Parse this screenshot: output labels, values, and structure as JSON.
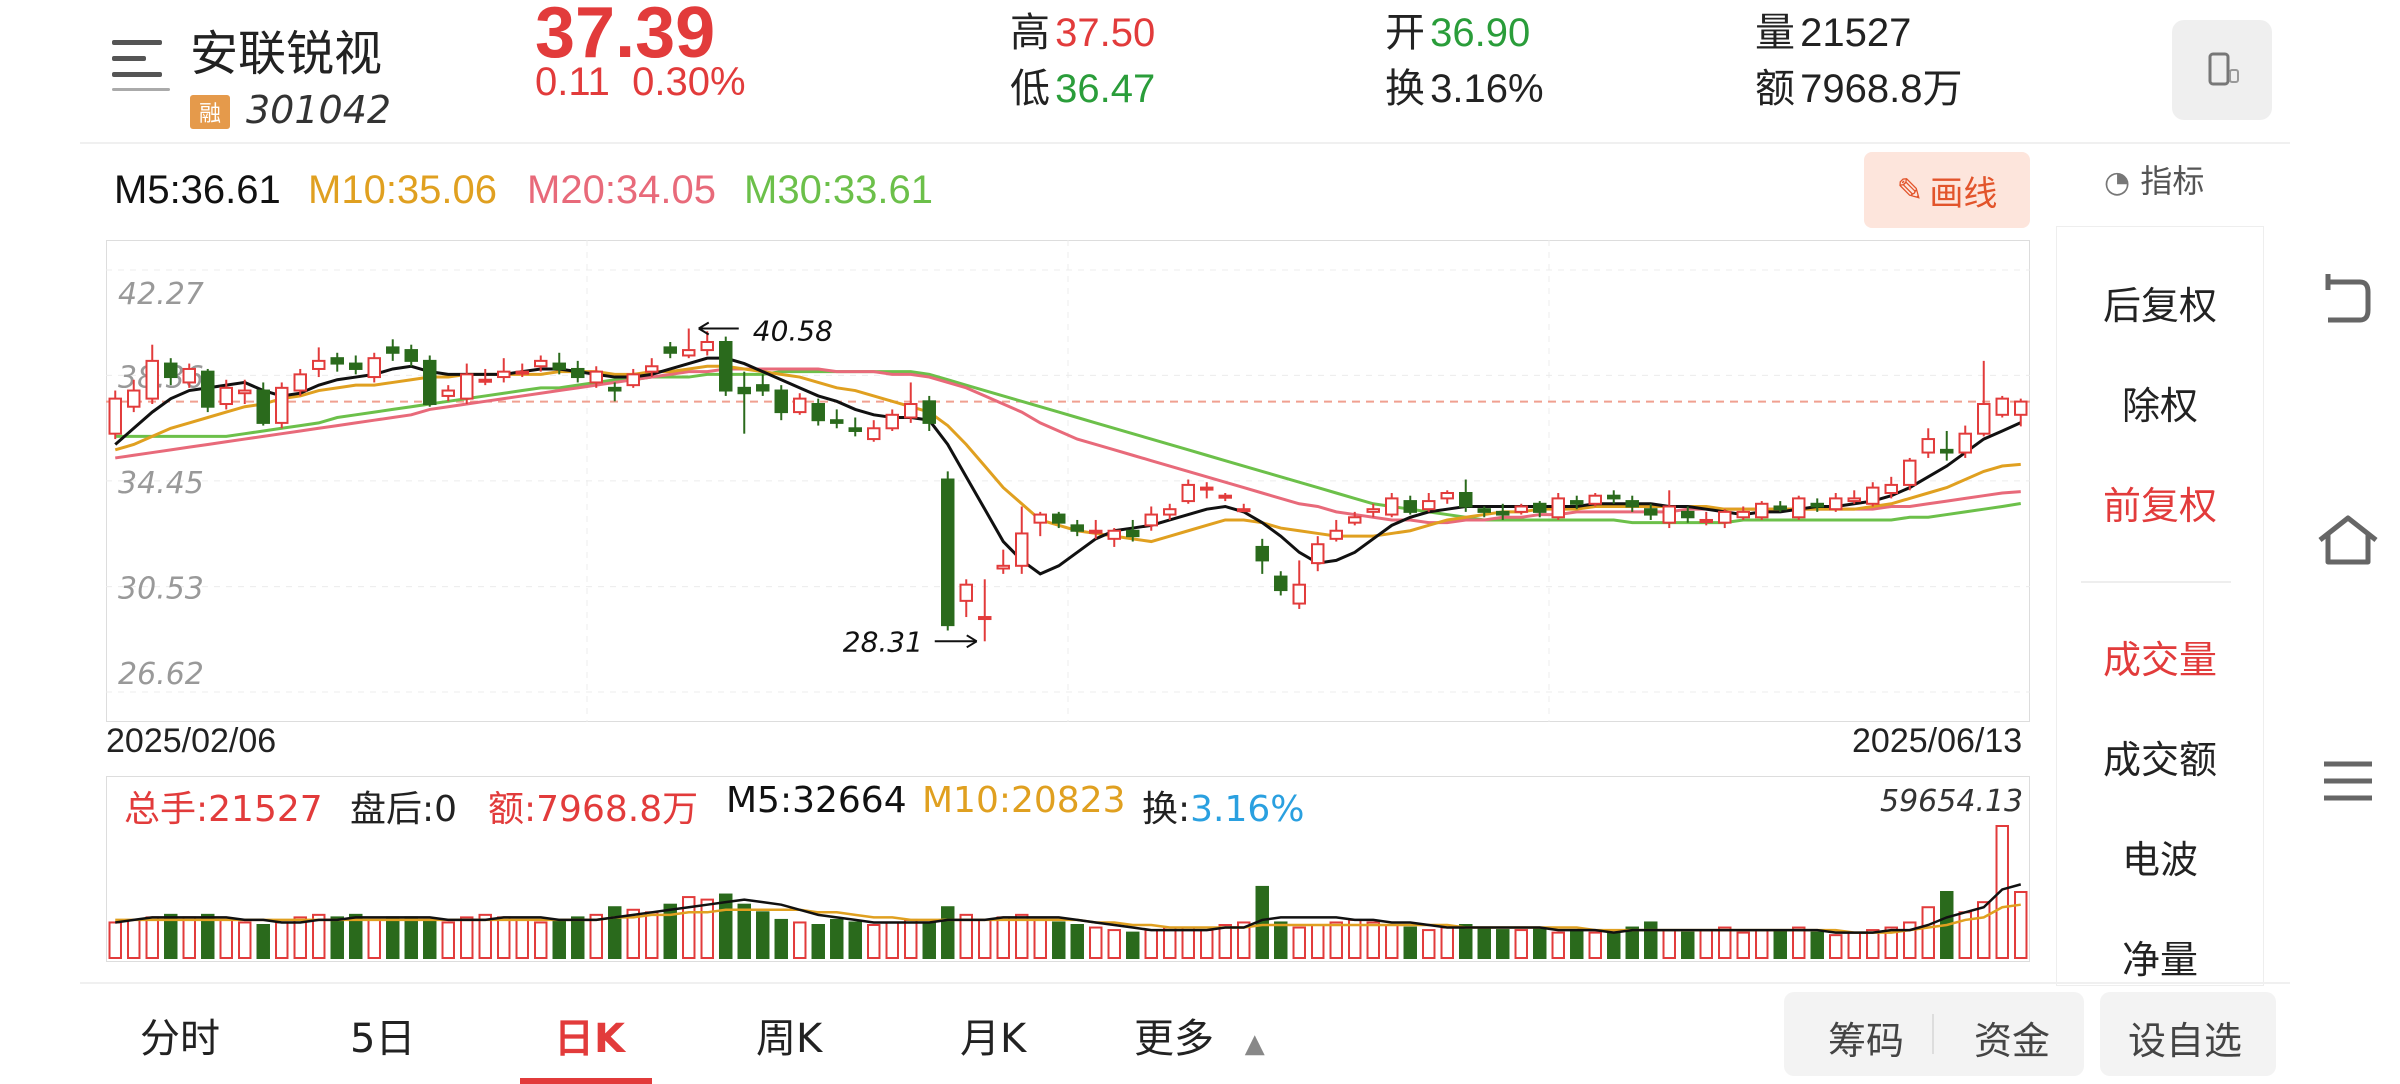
{
  "header": {
    "stock_name": "安联锐视",
    "badge": "融",
    "code": "301042",
    "price": "37.39",
    "change": "0.11",
    "change_pct": "0.30%",
    "high_label": "高",
    "high": "37.50",
    "low_label": "低",
    "low": "36.47",
    "open_label": "开",
    "open": "36.90",
    "turnover_label": "换",
    "turnover": "3.16%",
    "volume_label": "量",
    "volume": "21527",
    "amount_label": "额",
    "amount": "7968.8万"
  },
  "ma_legend": {
    "m5": "M5:36.61",
    "m10": "M10:35.06",
    "m20": "M20:34.05",
    "m30": "M30:33.61"
  },
  "toolbar": {
    "draw_label": "画线",
    "indicator_label": "指标"
  },
  "right_panel": {
    "items": [
      "后复权",
      "除权",
      "前复权",
      "成交量",
      "成交额",
      "电波",
      "净量"
    ]
  },
  "volume_legend": {
    "total": "总手:21527",
    "after_hours": "盘后:0",
    "amount": "额:7968.8万",
    "m5": "M5:32664",
    "m10": "M10:20823",
    "turnover_label": "换:",
    "turnover_value": "3.16%",
    "max": "59654.13"
  },
  "tabs": [
    "分时",
    "5日",
    "日K",
    "周K",
    "月K",
    "更多"
  ],
  "actions": {
    "chip": "筹码",
    "capital": "资金",
    "watchlist": "设自选"
  },
  "colors": {
    "up": "#e23b3b",
    "down": "#2a6a1c",
    "ma5": "#111111",
    "ma10": "#e0a020",
    "ma20": "#e86a7a",
    "ma30": "#6cc04a"
  },
  "chart_data": {
    "type": "candlestick",
    "y_ticks": [
      "42.27",
      "38.36",
      "34.45",
      "30.53",
      "26.62"
    ],
    "ylim": [
      26.62,
      42.27
    ],
    "x_start_label": "2025/02/06",
    "x_end_label": "2025/06/13",
    "annotations": {
      "high_mark": "40.58",
      "low_mark": "28.31"
    },
    "last_close": 37.39,
    "candles": [
      [
        36.2,
        37.5,
        37.8,
        36.0
      ],
      [
        37.2,
        37.8,
        38.2,
        37.0
      ],
      [
        37.5,
        38.9,
        39.5,
        37.3
      ],
      [
        38.8,
        38.3,
        39.0,
        38.0
      ],
      [
        38.1,
        38.6,
        38.8,
        37.9
      ],
      [
        38.5,
        37.2,
        38.6,
        37.0
      ],
      [
        37.3,
        37.9,
        38.2,
        37.1
      ],
      [
        37.7,
        37.8,
        38.2,
        37.3
      ],
      [
        37.8,
        36.6,
        38.1,
        36.5
      ],
      [
        36.6,
        37.9,
        38.1,
        36.4
      ],
      [
        37.8,
        38.4,
        38.6,
        37.6
      ],
      [
        38.6,
        38.9,
        39.4,
        38.3
      ],
      [
        39.0,
        38.8,
        39.2,
        38.5
      ],
      [
        38.8,
        38.6,
        39.1,
        38.4
      ],
      [
        38.3,
        39.0,
        39.2,
        38.1
      ],
      [
        39.4,
        39.2,
        39.7,
        38.9
      ],
      [
        39.3,
        38.9,
        39.5,
        38.7
      ],
      [
        38.9,
        37.3,
        39.1,
        37.2
      ],
      [
        37.6,
        37.8,
        38.0,
        37.4
      ],
      [
        37.5,
        38.4,
        38.8,
        37.3
      ],
      [
        38.2,
        38.2,
        38.6,
        38.0
      ],
      [
        38.3,
        38.5,
        39.0,
        38.1
      ],
      [
        38.5,
        38.5,
        38.8,
        38.3
      ],
      [
        38.7,
        38.9,
        39.1,
        38.5
      ],
      [
        38.8,
        38.6,
        39.2,
        38.4
      ],
      [
        38.6,
        38.3,
        38.9,
        38.1
      ],
      [
        38.1,
        38.5,
        38.7,
        37.9
      ],
      [
        37.9,
        37.8,
        38.1,
        37.4
      ],
      [
        38.0,
        38.4,
        38.6,
        37.9
      ],
      [
        38.5,
        38.7,
        39.0,
        38.3
      ],
      [
        39.4,
        39.2,
        39.6,
        39.0
      ],
      [
        39.1,
        39.3,
        40.1,
        39.0
      ],
      [
        39.3,
        39.6,
        40.0,
        39.1
      ],
      [
        39.6,
        37.8,
        39.8,
        37.6
      ],
      [
        37.9,
        37.7,
        38.5,
        36.2
      ],
      [
        38.0,
        37.8,
        38.4,
        37.6
      ],
      [
        37.8,
        37.0,
        38.0,
        36.7
      ],
      [
        37.0,
        37.5,
        37.7,
        36.9
      ],
      [
        37.3,
        36.7,
        37.5,
        36.5
      ],
      [
        36.7,
        36.6,
        37.1,
        36.4
      ],
      [
        36.4,
        36.3,
        36.8,
        36.1
      ],
      [
        36.0,
        36.4,
        36.7,
        35.9
      ],
      [
        36.4,
        36.9,
        37.1,
        36.3
      ],
      [
        36.8,
        37.3,
        38.1,
        36.6
      ],
      [
        37.4,
        36.6,
        37.6,
        36.3
      ],
      [
        34.5,
        29.1,
        34.8,
        28.9
      ],
      [
        30.0,
        30.6,
        30.8,
        29.4
      ],
      [
        29.4,
        29.4,
        30.8,
        28.5
      ],
      [
        31.2,
        31.3,
        31.9,
        31.0
      ],
      [
        31.3,
        32.5,
        33.5,
        31.0
      ],
      [
        32.9,
        33.2,
        33.3,
        32.4
      ],
      [
        33.2,
        32.9,
        33.3,
        32.7
      ],
      [
        32.8,
        32.6,
        33.0,
        32.4
      ],
      [
        32.6,
        32.6,
        33.0,
        32.3
      ],
      [
        32.3,
        32.6,
        32.7,
        32.0
      ],
      [
        32.6,
        32.4,
        33.0,
        32.2
      ],
      [
        32.8,
        33.2,
        33.5,
        32.6
      ],
      [
        33.2,
        33.4,
        33.6,
        33.0
      ],
      [
        33.7,
        34.3,
        34.5,
        33.6
      ],
      [
        34.2,
        34.2,
        34.4,
        33.8
      ],
      [
        33.9,
        33.9,
        34.0,
        33.7
      ],
      [
        33.4,
        33.4,
        33.6,
        33.3
      ],
      [
        32.0,
        31.5,
        32.3,
        31.0
      ],
      [
        30.9,
        30.4,
        31.1,
        30.2
      ],
      [
        29.9,
        30.6,
        31.5,
        29.7
      ],
      [
        31.4,
        32.1,
        32.4,
        31.1
      ],
      [
        32.3,
        32.6,
        33.0,
        32.2
      ],
      [
        32.9,
        33.1,
        33.3,
        32.8
      ],
      [
        33.3,
        33.4,
        33.6,
        33.1
      ],
      [
        33.2,
        33.8,
        34.0,
        33.1
      ],
      [
        33.7,
        33.3,
        33.9,
        33.2
      ],
      [
        33.4,
        33.7,
        34.0,
        33.3
      ],
      [
        33.8,
        34.0,
        34.1,
        33.6
      ],
      [
        34.0,
        33.5,
        34.5,
        33.3
      ],
      [
        33.4,
        33.3,
        33.5,
        33.1
      ],
      [
        33.3,
        33.2,
        33.6,
        33.0
      ],
      [
        33.3,
        33.5,
        33.6,
        33.2
      ],
      [
        33.6,
        33.3,
        33.7,
        33.1
      ],
      [
        33.1,
        33.8,
        34.0,
        33.0
      ],
      [
        33.7,
        33.6,
        33.9,
        33.4
      ],
      [
        33.6,
        33.9,
        34.0,
        33.5
      ],
      [
        33.9,
        33.8,
        34.1,
        33.6
      ],
      [
        33.7,
        33.5,
        33.9,
        33.3
      ],
      [
        33.4,
        33.2,
        33.6,
        33.0
      ],
      [
        32.9,
        33.5,
        34.1,
        32.7
      ],
      [
        33.3,
        33.1,
        33.5,
        32.9
      ],
      [
        33.0,
        33.0,
        33.3,
        32.8
      ],
      [
        32.9,
        33.3,
        33.4,
        32.7
      ],
      [
        33.1,
        33.3,
        33.5,
        33.0
      ],
      [
        33.1,
        33.6,
        33.7,
        33.0
      ],
      [
        33.5,
        33.4,
        33.7,
        33.3
      ],
      [
        33.1,
        33.8,
        33.9,
        33.0
      ],
      [
        33.6,
        33.5,
        33.8,
        33.3
      ],
      [
        33.4,
        33.8,
        34.0,
        33.3
      ],
      [
        33.7,
        33.8,
        34.1,
        33.6
      ],
      [
        33.6,
        34.2,
        34.4,
        33.5
      ],
      [
        34.0,
        34.3,
        34.6,
        33.8
      ],
      [
        34.3,
        35.2,
        35.3,
        34.1
      ],
      [
        35.5,
        36.0,
        36.4,
        35.3
      ],
      [
        35.6,
        35.5,
        36.3,
        35.2
      ],
      [
        35.5,
        36.2,
        36.5,
        35.3
      ],
      [
        36.2,
        37.3,
        38.9,
        36.1
      ],
      [
        36.9,
        37.5,
        37.6,
        36.8
      ],
      [
        36.9,
        37.39,
        37.5,
        36.47
      ]
    ],
    "ma5": [
      35.8,
      36.4,
      37.0,
      37.5,
      37.8,
      37.9,
      38.0,
      38.1,
      37.8,
      37.6,
      37.7,
      38.0,
      38.2,
      38.3,
      38.4,
      38.6,
      38.7,
      38.5,
      38.4,
      38.4,
      38.4,
      38.4,
      38.5,
      38.6,
      38.6,
      38.5,
      38.4,
      38.3,
      38.3,
      38.4,
      38.6,
      38.8,
      39.0,
      39.0,
      38.8,
      38.5,
      38.2,
      37.9,
      37.6,
      37.4,
      37.1,
      36.9,
      36.8,
      36.8,
      36.7,
      35.8,
      34.6,
      33.4,
      32.2,
      31.5,
      31.0,
      31.3,
      31.8,
      32.3,
      32.6,
      32.7,
      32.8,
      33.0,
      33.2,
      33.4,
      33.5,
      33.3,
      32.9,
      32.4,
      31.8,
      31.4,
      31.5,
      31.8,
      32.3,
      32.8,
      33.1,
      33.3,
      33.4,
      33.5,
      33.5,
      33.5,
      33.5,
      33.5,
      33.5,
      33.5,
      33.6,
      33.6,
      33.6,
      33.6,
      33.5,
      33.5,
      33.4,
      33.3,
      33.2,
      33.3,
      33.3,
      33.4,
      33.5,
      33.5,
      33.6,
      33.7,
      33.9,
      34.2,
      34.6,
      35.0,
      35.5,
      36.0,
      36.3,
      36.61
    ],
    "ma10": [
      35.6,
      35.8,
      36.1,
      36.4,
      36.6,
      36.8,
      37.0,
      37.2,
      37.3,
      37.5,
      37.6,
      37.8,
      37.9,
      38.0,
      38.0,
      38.1,
      38.2,
      38.3,
      38.3,
      38.4,
      38.4,
      38.4,
      38.4,
      38.4,
      38.5,
      38.5,
      38.5,
      38.4,
      38.4,
      38.5,
      38.5,
      38.6,
      38.7,
      38.7,
      38.6,
      38.5,
      38.4,
      38.3,
      38.1,
      37.9,
      37.8,
      37.6,
      37.4,
      37.2,
      37.0,
      36.5,
      35.8,
      35.0,
      34.2,
      33.6,
      33.0,
      32.8,
      32.6,
      32.5,
      32.4,
      32.3,
      32.2,
      32.4,
      32.6,
      32.8,
      33.0,
      33.0,
      32.9,
      32.7,
      32.6,
      32.5,
      32.4,
      32.4,
      32.4,
      32.5,
      32.6,
      32.8,
      33.0,
      33.1,
      33.2,
      33.3,
      33.3,
      33.4,
      33.4,
      33.4,
      33.5,
      33.5,
      33.5,
      33.5,
      33.5,
      33.5,
      33.5,
      33.4,
      33.4,
      33.4,
      33.4,
      33.4,
      33.4,
      33.4,
      33.4,
      33.5,
      33.6,
      33.8,
      34.0,
      34.2,
      34.5,
      34.8,
      35.0,
      35.06
    ],
    "ma20": [
      35.3,
      35.4,
      35.5,
      35.6,
      35.7,
      35.8,
      35.9,
      36.0,
      36.1,
      36.2,
      36.3,
      36.4,
      36.5,
      36.6,
      36.7,
      36.8,
      36.9,
      37.1,
      37.2,
      37.3,
      37.4,
      37.5,
      37.6,
      37.7,
      37.8,
      37.9,
      38.0,
      38.1,
      38.2,
      38.3,
      38.4,
      38.5,
      38.5,
      38.6,
      38.6,
      38.6,
      38.6,
      38.6,
      38.6,
      38.5,
      38.5,
      38.5,
      38.4,
      38.4,
      38.3,
      38.1,
      37.9,
      37.6,
      37.3,
      37.0,
      36.6,
      36.3,
      36.0,
      35.8,
      35.6,
      35.4,
      35.2,
      35.0,
      34.8,
      34.6,
      34.4,
      34.2,
      34.0,
      33.8,
      33.6,
      33.5,
      33.3,
      33.2,
      33.1,
      33.0,
      33.0,
      32.9,
      32.9,
      33.0,
      33.0,
      33.1,
      33.1,
      33.2,
      33.2,
      33.3,
      33.3,
      33.3,
      33.3,
      33.3,
      33.3,
      33.4,
      33.4,
      33.4,
      33.4,
      33.4,
      33.4,
      33.4,
      33.4,
      33.4,
      33.4,
      33.4,
      33.5,
      33.5,
      33.6,
      33.7,
      33.8,
      33.9,
      34.0,
      34.05
    ],
    "ma30": [
      36.1,
      36.1,
      36.1,
      36.1,
      36.1,
      36.1,
      36.1,
      36.2,
      36.3,
      36.4,
      36.5,
      36.6,
      36.8,
      36.9,
      37.0,
      37.1,
      37.2,
      37.3,
      37.4,
      37.5,
      37.6,
      37.7,
      37.8,
      37.9,
      37.9,
      38.0,
      38.1,
      38.2,
      38.2,
      38.3,
      38.3,
      38.3,
      38.4,
      38.4,
      38.4,
      38.4,
      38.5,
      38.5,
      38.5,
      38.5,
      38.5,
      38.5,
      38.5,
      38.5,
      38.4,
      38.2,
      38.0,
      37.8,
      37.6,
      37.4,
      37.2,
      37.0,
      36.8,
      36.6,
      36.4,
      36.2,
      36.0,
      35.8,
      35.6,
      35.4,
      35.2,
      35.0,
      34.8,
      34.6,
      34.4,
      34.2,
      34.0,
      33.8,
      33.6,
      33.5,
      33.4,
      33.3,
      33.2,
      33.1,
      33.0,
      33.0,
      33.0,
      33.0,
      33.0,
      33.0,
      33.0,
      33.0,
      32.9,
      32.9,
      32.9,
      32.9,
      32.9,
      32.9,
      33.0,
      33.0,
      33.0,
      33.0,
      33.0,
      33.0,
      33.0,
      33.0,
      33.0,
      33.1,
      33.1,
      33.2,
      33.3,
      33.4,
      33.5,
      33.61
    ],
    "volume": [
      14,
      15,
      16,
      17,
      16,
      17,
      15,
      14,
      13,
      14,
      16,
      17,
      16,
      17,
      15,
      16,
      16,
      15,
      14,
      16,
      17,
      16,
      15,
      14,
      15,
      16,
      17,
      20,
      19,
      18,
      21,
      24,
      23,
      25,
      21,
      18,
      15,
      14,
      13,
      15,
      14,
      13,
      14,
      15,
      14,
      20,
      17,
      15,
      16,
      17,
      15,
      14,
      13,
      12,
      11,
      10,
      11,
      12,
      12,
      11,
      13,
      14,
      28,
      14,
      12,
      13,
      14,
      15,
      14,
      13,
      12,
      11,
      12,
      13,
      12,
      11,
      11,
      12,
      10,
      11,
      10,
      10,
      12,
      14,
      11,
      10,
      11,
      12,
      10,
      11,
      11,
      12,
      10,
      9,
      10,
      11,
      12,
      14,
      20,
      26,
      18,
      22,
      52,
      26
    ],
    "vol_ma5": [
      14,
      15,
      16,
      16,
      16,
      16,
      16,
      15,
      15,
      14,
      14,
      15,
      15,
      16,
      16,
      16,
      16,
      16,
      15,
      15,
      15,
      16,
      16,
      16,
      15,
      15,
      15,
      16,
      17,
      18,
      19,
      20,
      21,
      22,
      23,
      22,
      21,
      19,
      17,
      16,
      15,
      14,
      14,
      14,
      14,
      15,
      15,
      15,
      16,
      16,
      16,
      16,
      15,
      14,
      13,
      12,
      11,
      11,
      11,
      11,
      12,
      12,
      15,
      16,
      16,
      16,
      16,
      15,
      15,
      14,
      14,
      13,
      12,
      12,
      12,
      12,
      12,
      12,
      11,
      11,
      11,
      10,
      11,
      11,
      11,
      11,
      11,
      11,
      11,
      11,
      11,
      11,
      11,
      10,
      10,
      10,
      11,
      11,
      13,
      16,
      18,
      20,
      27,
      29
    ],
    "vol_ma10": [
      15,
      15,
      15,
      15,
      15,
      15,
      15,
      15,
      15,
      15,
      15,
      15,
      15,
      15,
      15,
      15,
      15,
      15,
      15,
      15,
      15,
      15,
      15,
      15,
      15,
      15,
      15,
      16,
      16,
      17,
      17,
      18,
      18,
      19,
      19,
      19,
      19,
      19,
      18,
      18,
      17,
      16,
      16,
      15,
      15,
      15,
      15,
      15,
      15,
      15,
      15,
      15,
      15,
      14,
      14,
      13,
      13,
      12,
      12,
      12,
      12,
      12,
      13,
      13,
      13,
      13,
      13,
      13,
      13,
      13,
      13,
      13,
      13,
      12,
      12,
      12,
      12,
      12,
      12,
      12,
      11,
      11,
      11,
      11,
      11,
      11,
      11,
      11,
      11,
      11,
      11,
      11,
      11,
      11,
      10,
      10,
      10,
      11,
      12,
      13,
      15,
      16,
      20,
      21
    ]
  }
}
